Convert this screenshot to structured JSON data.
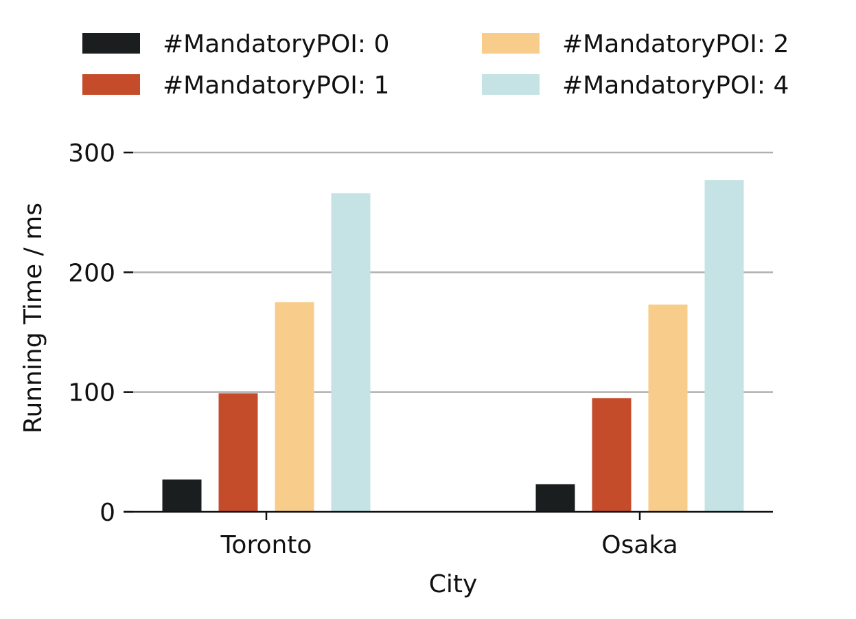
{
  "chart_data": {
    "type": "bar",
    "title": "",
    "xlabel": "City",
    "ylabel": "Running Time / ms",
    "categories": [
      "Toronto",
      "Osaka"
    ],
    "ylim": [
      0,
      300
    ],
    "yticks": [
      0,
      100,
      200,
      300
    ],
    "grid": "horizontal",
    "legend_position": "top",
    "series": [
      {
        "name": "#MandatoryPOI: 0",
        "color": "#1b1e1e",
        "values": [
          27,
          23
        ]
      },
      {
        "name": "#MandatoryPOI: 1",
        "color": "#c54c2b",
        "values": [
          99,
          95
        ]
      },
      {
        "name": "#MandatoryPOI: 2",
        "color": "#f8cd8b",
        "values": [
          175,
          173
        ]
      },
      {
        "name": "#MandatoryPOI: 4",
        "color": "#c5e3e4",
        "values": [
          266,
          277
        ]
      }
    ]
  }
}
